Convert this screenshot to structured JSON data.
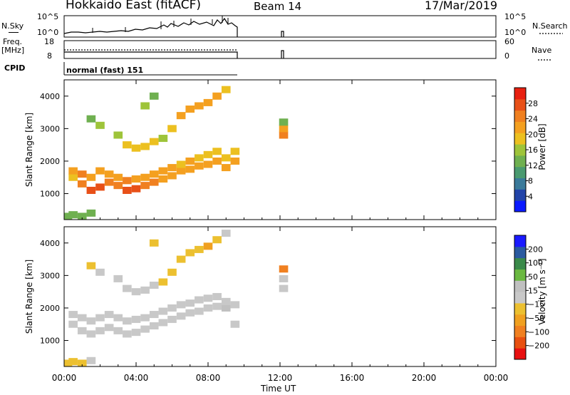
{
  "header": {
    "station": "Hokkaido East (fitACF)",
    "beam": "Beam 14",
    "date": "17/Mar/2019"
  },
  "panels": {
    "nsky": {
      "label": "N.Sky",
      "ticks": [
        "10^5",
        "10^0"
      ],
      "right_label": "N.Search"
    },
    "freq": {
      "label": "Freq.",
      "unit": "[MHz]",
      "left_ticks": [
        "18",
        "8"
      ],
      "right_ticks": [
        "60",
        "0"
      ],
      "right_label": "Nave"
    },
    "cpid": {
      "label": "CPID",
      "value": "normal (fast) 151"
    }
  },
  "chart_data": [
    {
      "type": "heatmap",
      "title": "",
      "xlabel": "Time UT",
      "ylabel": "Slant Range [km]",
      "xlim": [
        0,
        24
      ],
      "ylim": [
        200,
        4500
      ],
      "x_ticks": [
        "00:00",
        "04:00",
        "08:00",
        "12:00",
        "16:00",
        "20:00",
        "00:00"
      ],
      "y_ticks": [
        "1000",
        "2000",
        "3000",
        "4000"
      ],
      "colorbar": {
        "label": "Power [dB]",
        "range": [
          0,
          32
        ],
        "ticks": [
          "4",
          "8",
          "12",
          "16",
          "20",
          "24",
          "28"
        ],
        "colors": [
          "#0a1aff",
          "#2244a8",
          "#3a7a9a",
          "#4a9a70",
          "#6fb050",
          "#9ec43a",
          "#ecc020",
          "#f4a020",
          "#f08020",
          "#e85018",
          "#e82010"
        ]
      },
      "series": [
        {
          "name": "",
          "values": [
            [
              0.5,
              1500,
              20
            ],
            [
              0.5,
              1700,
              22
            ],
            [
              1.0,
              1300,
              26
            ],
            [
              1.0,
              1600,
              24
            ],
            [
              1.5,
              1100,
              28
            ],
            [
              1.5,
              1500,
              23
            ],
            [
              2.0,
              1200,
              27
            ],
            [
              2.0,
              1700,
              22
            ],
            [
              2.5,
              1350,
              24
            ],
            [
              2.5,
              1600,
              22
            ],
            [
              3.0,
              1250,
              25
            ],
            [
              3.0,
              1500,
              23
            ],
            [
              3.5,
              1100,
              28
            ],
            [
              3.5,
              1400,
              24
            ],
            [
              4.0,
              1150,
              27
            ],
            [
              4.0,
              1450,
              23
            ],
            [
              4.5,
              1250,
              25
            ],
            [
              4.5,
              1500,
              22
            ],
            [
              5.0,
              1350,
              24
            ],
            [
              5.0,
              1600,
              22
            ],
            [
              5.5,
              1450,
              22
            ],
            [
              5.5,
              1700,
              21
            ],
            [
              6.0,
              1550,
              23
            ],
            [
              6.0,
              1800,
              21
            ],
            [
              6.5,
              1700,
              22
            ],
            [
              6.5,
              1900,
              20
            ],
            [
              7.0,
              1750,
              23
            ],
            [
              7.0,
              2000,
              21
            ],
            [
              7.5,
              1850,
              22
            ],
            [
              7.5,
              2100,
              20
            ],
            [
              8.0,
              1900,
              22
            ],
            [
              8.0,
              2200,
              20
            ],
            [
              8.5,
              2000,
              21
            ],
            [
              8.5,
              2300,
              19
            ],
            [
              9.0,
              1800,
              22
            ],
            [
              9.0,
              2100,
              20
            ],
            [
              9.5,
              2000,
              21
            ],
            [
              9.5,
              2300,
              19
            ],
            [
              1.5,
              3300,
              14
            ],
            [
              2.0,
              3100,
              16
            ],
            [
              3.0,
              2800,
              17
            ],
            [
              3.5,
              2500,
              18
            ],
            [
              4.0,
              2400,
              19
            ],
            [
              4.5,
              2450,
              19
            ],
            [
              5.0,
              2600,
              18
            ],
            [
              5.5,
              2700,
              17
            ],
            [
              6.0,
              3000,
              19
            ],
            [
              6.5,
              3400,
              21
            ],
            [
              7.0,
              3600,
              22
            ],
            [
              7.5,
              3700,
              21
            ],
            [
              8.0,
              3800,
              22
            ],
            [
              8.5,
              4000,
              21
            ],
            [
              9.0,
              4200,
              20
            ],
            [
              5.0,
              4000,
              14
            ],
            [
              4.5,
              3700,
              15
            ],
            [
              12.2,
              2800,
              24
            ],
            [
              12.2,
              3000,
              22
            ],
            [
              12.2,
              3200,
              14
            ],
            [
              0.2,
              300,
              12
            ],
            [
              0.5,
              350,
              14
            ],
            [
              1.0,
              300,
              13
            ],
            [
              1.5,
              400,
              12
            ]
          ]
        }
      ]
    },
    {
      "type": "heatmap",
      "title": "",
      "xlabel": "Time UT",
      "ylabel": "Slant Range [km]",
      "xlim": [
        0,
        24
      ],
      "ylim": [
        200,
        4500
      ],
      "x_ticks": [
        "00:00",
        "04:00",
        "08:00",
        "12:00",
        "16:00",
        "20:00",
        "00:00"
      ],
      "y_ticks": [
        "1000",
        "2000",
        "3000",
        "4000"
      ],
      "colorbar": {
        "label": "Velocity [m s⁻¹]",
        "range": [
          -250,
          250
        ],
        "ticks": [
          "200",
          "100",
          "50",
          "15",
          "−15",
          "−50",
          "−100",
          "−200"
        ],
        "colors": [
          "#e81010",
          "#e85010",
          "#f08020",
          "#f0a020",
          "#ecc030",
          "#c8c8c8",
          "#c0c0c0",
          "#6ab840",
          "#3a8a4a",
          "#2a5aa0",
          "#1a1aff"
        ]
      },
      "series": [
        {
          "name": "",
          "values": [
            [
              0.5,
              1500,
              0
            ],
            [
              0.5,
              1800,
              -10
            ],
            [
              1.0,
              1300,
              5
            ],
            [
              1.0,
              1700,
              -5
            ],
            [
              1.5,
              1200,
              0
            ],
            [
              1.5,
              1600,
              10
            ],
            [
              2.0,
              1300,
              -5
            ],
            [
              2.0,
              1700,
              0
            ],
            [
              2.5,
              1400,
              5
            ],
            [
              2.5,
              1800,
              0
            ],
            [
              3.0,
              1300,
              -10
            ],
            [
              3.0,
              1700,
              5
            ],
            [
              3.5,
              1200,
              0
            ],
            [
              3.5,
              1600,
              -5
            ],
            [
              4.0,
              1250,
              5
            ],
            [
              4.0,
              1650,
              0
            ],
            [
              4.5,
              1350,
              -5
            ],
            [
              4.5,
              1700,
              0
            ],
            [
              5.0,
              1450,
              0
            ],
            [
              5.0,
              1800,
              -10
            ],
            [
              5.5,
              1550,
              5
            ],
            [
              5.5,
              1900,
              0
            ],
            [
              6.0,
              1650,
              0
            ],
            [
              6.0,
              2000,
              5
            ],
            [
              6.5,
              1750,
              -5
            ],
            [
              6.5,
              2100,
              0
            ],
            [
              7.0,
              1850,
              0
            ],
            [
              7.0,
              2150,
              -10
            ],
            [
              7.5,
              1900,
              5
            ],
            [
              7.5,
              2250,
              0
            ],
            [
              8.0,
              2000,
              0
            ],
            [
              8.0,
              2300,
              -5
            ],
            [
              8.5,
              2050,
              5
            ],
            [
              8.5,
              2350,
              0
            ],
            [
              9.0,
              2000,
              40
            ],
            [
              9.0,
              2200,
              0
            ],
            [
              9.5,
              2100,
              0
            ],
            [
              9.5,
              1500,
              0
            ],
            [
              1.5,
              3300,
              -30
            ],
            [
              2.0,
              3100,
              -20
            ],
            [
              3.0,
              2900,
              0
            ],
            [
              3.5,
              2600,
              0
            ],
            [
              4.0,
              2500,
              0
            ],
            [
              4.5,
              2550,
              5
            ],
            [
              5.0,
              2700,
              0
            ],
            [
              5.5,
              2800,
              -30
            ],
            [
              6.0,
              3100,
              -40
            ],
            [
              6.5,
              3500,
              -60
            ],
            [
              7.0,
              3700,
              -40
            ],
            [
              7.5,
              3800,
              -50
            ],
            [
              8.0,
              3900,
              -70
            ],
            [
              8.5,
              4100,
              -30
            ],
            [
              9.0,
              4300,
              0
            ],
            [
              5.0,
              4000,
              -40
            ],
            [
              12.2,
              2600,
              0
            ],
            [
              12.2,
              2900,
              0
            ],
            [
              12.2,
              3200,
              -150
            ],
            [
              0.2,
              300,
              -30
            ],
            [
              0.5,
              350,
              -40
            ],
            [
              1.0,
              300,
              -30
            ],
            [
              1.5,
              380,
              -20
            ]
          ]
        }
      ]
    }
  ]
}
